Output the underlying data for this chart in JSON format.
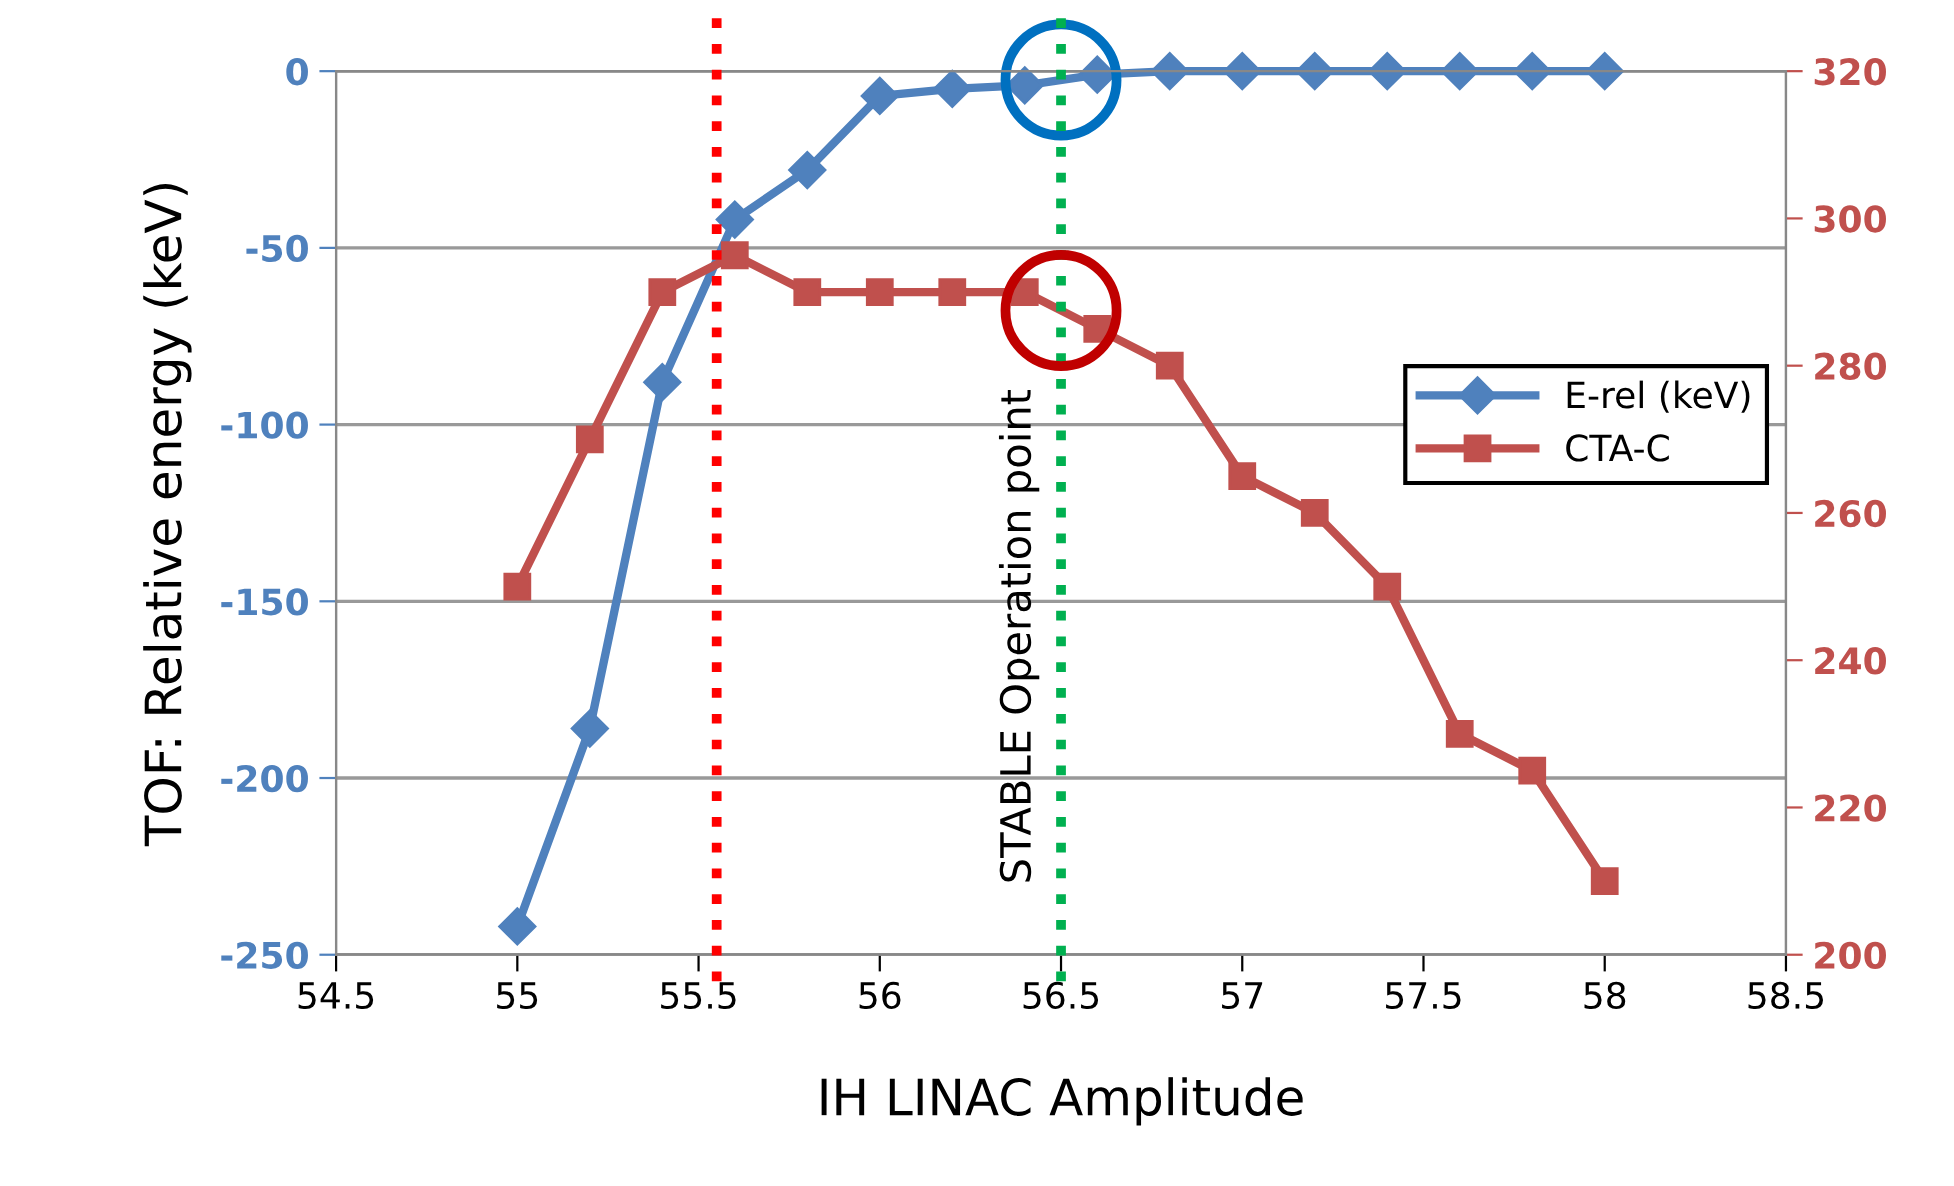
{
  "chart_data": {
    "type": "line",
    "xlabel": "IH LINAC Amplitude",
    "ylabel": "TOF: Relative energy (keV)",
    "x": [
      55,
      55.2,
      55.4,
      55.6,
      55.8,
      56,
      56.2,
      56.4,
      56.6,
      56.8,
      57,
      57.2,
      57.4,
      57.6,
      57.8,
      58
    ],
    "series": [
      {
        "name": "E-rel (keV)",
        "color": "#4f81bd",
        "marker": "diamond",
        "values": [
          -242,
          -186,
          -88,
          -42,
          -28,
          -7,
          -5,
          -4,
          -1,
          0,
          0,
          0,
          0,
          0,
          0,
          0
        ]
      },
      {
        "name": "CTA-C",
        "color": "#c0504d",
        "marker": "square",
        "axis": "y2",
        "values": [
          250,
          270,
          290,
          295,
          290,
          290,
          290,
          290,
          285,
          280,
          265,
          260,
          250,
          230,
          225,
          210
        ]
      }
    ],
    "xlim": [
      54.5,
      58.5
    ],
    "xticks": [
      54.5,
      55,
      55.5,
      56,
      56.5,
      57,
      57.5,
      58,
      58.5
    ],
    "ylim": [
      -250,
      0
    ],
    "yticks": [
      -250,
      -200,
      -150,
      -100,
      -50,
      0
    ],
    "y2lim": [
      200,
      320
    ],
    "y2ticks": [
      200,
      220,
      240,
      260,
      280,
      300,
      320
    ],
    "ref_lines": [
      {
        "axis": "x",
        "value": 55.55,
        "color": "#ff0000",
        "line_style": "dotted"
      },
      {
        "axis": "x",
        "value": 56.5,
        "label": "STABLE Operation point",
        "color": "#00b050",
        "line_style": "dotted"
      }
    ],
    "grid": "y",
    "legend": "right",
    "line_style": "solid"
  }
}
